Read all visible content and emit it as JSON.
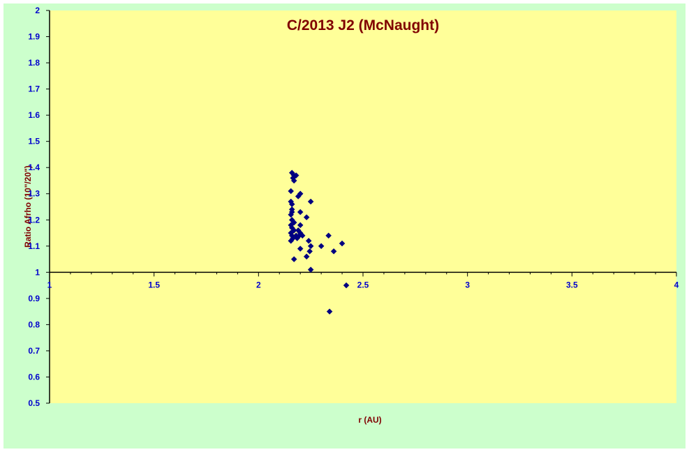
{
  "colors": {
    "chart_area": "#CCFFCC",
    "plot_area": "#FFFF99",
    "axis": "#000000",
    "tick_label": "#0000CC",
    "title": "#800000",
    "marker": "#000080"
  },
  "chart_data": {
    "type": "scatter",
    "title": "C/2013 J2 (McNaught)",
    "xlabel": "r (AU)",
    "ylabel": "Ratio Afrho (10\"/20\")",
    "xlim": [
      1,
      4
    ],
    "ylim": [
      0.5,
      2
    ],
    "x_ticks": [
      "1",
      "1.5",
      "2",
      "2.5",
      "3",
      "3.5",
      "4"
    ],
    "y_ticks": [
      "0.5",
      "0.6",
      "0.7",
      "0.8",
      "0.9",
      "1",
      "1.1",
      "1.2",
      "1.3",
      "1.4",
      "1.5",
      "1.6",
      "1.7",
      "1.8",
      "1.9",
      "2"
    ],
    "x_axis_crosses_at": 1,
    "grid": false,
    "marker": "diamond",
    "points": [
      [
        2.16,
        1.38
      ],
      [
        2.17,
        1.37
      ],
      [
        2.18,
        1.37
      ],
      [
        2.165,
        1.36
      ],
      [
        2.17,
        1.35
      ],
      [
        2.155,
        1.31
      ],
      [
        2.2,
        1.3
      ],
      [
        2.19,
        1.29
      ],
      [
        2.25,
        1.27
      ],
      [
        2.155,
        1.27
      ],
      [
        2.16,
        1.26
      ],
      [
        2.16,
        1.24
      ],
      [
        2.16,
        1.23
      ],
      [
        2.2,
        1.23
      ],
      [
        2.155,
        1.22
      ],
      [
        2.23,
        1.21
      ],
      [
        2.16,
        1.2
      ],
      [
        2.17,
        1.19
      ],
      [
        2.155,
        1.18
      ],
      [
        2.2,
        1.18
      ],
      [
        2.16,
        1.17
      ],
      [
        2.17,
        1.16
      ],
      [
        2.155,
        1.15
      ],
      [
        2.19,
        1.16
      ],
      [
        2.2,
        1.15
      ],
      [
        2.16,
        1.14
      ],
      [
        2.18,
        1.14
      ],
      [
        2.195,
        1.14
      ],
      [
        2.21,
        1.14
      ],
      [
        2.165,
        1.13
      ],
      [
        2.185,
        1.13
      ],
      [
        2.335,
        1.14
      ],
      [
        2.155,
        1.12
      ],
      [
        2.24,
        1.12
      ],
      [
        2.25,
        1.1
      ],
      [
        2.3,
        1.1
      ],
      [
        2.4,
        1.11
      ],
      [
        2.2,
        1.09
      ],
      [
        2.245,
        1.08
      ],
      [
        2.36,
        1.08
      ],
      [
        2.23,
        1.06
      ],
      [
        2.17,
        1.05
      ],
      [
        2.25,
        1.01
      ],
      [
        2.42,
        0.95
      ],
      [
        2.34,
        0.85
      ]
    ]
  }
}
